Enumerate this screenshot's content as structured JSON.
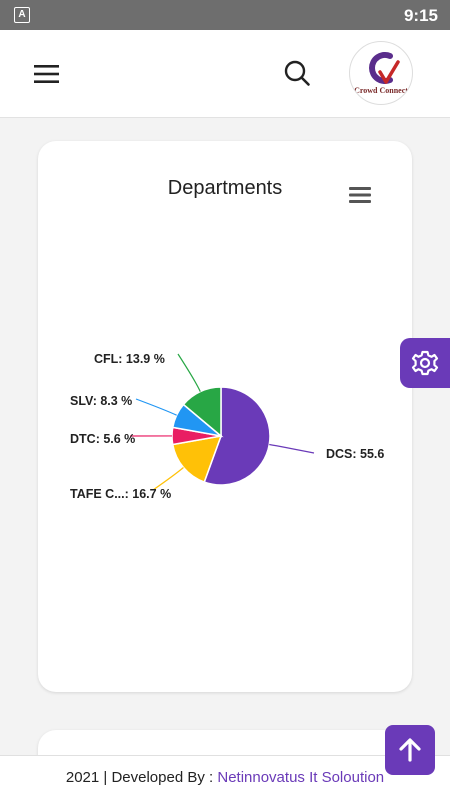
{
  "status_bar": {
    "app_icon_letter": "A",
    "time": "9:15"
  },
  "header": {
    "menu_icon": "hamburger-icon",
    "search_icon": "search-icon",
    "logo_text": "Crowd Connect"
  },
  "card": {
    "title": "Departments",
    "menu_icon": "hamburger-icon"
  },
  "chart_data": {
    "type": "pie",
    "title": "Departments",
    "slices": [
      {
        "label": "DCS: 55.6",
        "name": "DCS",
        "value": 55.6,
        "color": "#6a3ab8"
      },
      {
        "label": "TAFE C...: 16.7 %",
        "name": "TAFE C...",
        "value": 16.7,
        "color": "#ffc107"
      },
      {
        "label": "DTC: 5.6 %",
        "name": "DTC",
        "value": 5.6,
        "color": "#e91e63"
      },
      {
        "label": "SLV: 8.3 %",
        "name": "SLV",
        "value": 8.3,
        "color": "#2196f3"
      },
      {
        "label": "CFL: 13.9 %",
        "name": "CFL",
        "value": 13.9,
        "color": "#28a745"
      }
    ]
  },
  "side_tab": {
    "icon": "settings-icon"
  },
  "footer": {
    "prefix": "2021 | Developed By : ",
    "company": "Netinnovatus It Soloution"
  },
  "scroll_top": {
    "icon": "arrow-up-icon"
  }
}
